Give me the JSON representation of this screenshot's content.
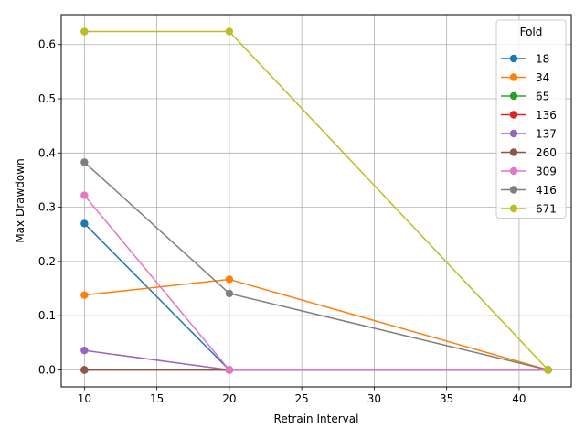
{
  "chart_data": {
    "type": "line",
    "title": "",
    "xlabel": "Retrain Interval",
    "ylabel": "Max Drawdown",
    "x": [
      10,
      20,
      42
    ],
    "xlim": [
      8.4,
      43.6
    ],
    "ylim": [
      -0.0312,
      0.6552
    ],
    "xticks": [
      10,
      15,
      20,
      25,
      30,
      35,
      40
    ],
    "yticks": [
      0.0,
      0.1,
      0.2,
      0.3,
      0.4,
      0.5,
      0.6
    ],
    "xtick_labels": [
      "10",
      "15",
      "20",
      "25",
      "30",
      "35",
      "40"
    ],
    "ytick_labels": [
      "0.0",
      "0.1",
      "0.2",
      "0.3",
      "0.4",
      "0.5",
      "0.6"
    ],
    "grid": true,
    "legend": {
      "title": "Fold",
      "placement": "top-right"
    },
    "series": [
      {
        "name": "18",
        "color": "#1f77b4",
        "values": [
          0.27,
          0.0,
          0.0
        ]
      },
      {
        "name": "34",
        "color": "#ff7f0e",
        "values": [
          0.138,
          0.167,
          0.0
        ]
      },
      {
        "name": "65",
        "color": "#2ca02c",
        "values": [
          0.0,
          0.0,
          0.0
        ]
      },
      {
        "name": "136",
        "color": "#d62728",
        "values": [
          0.0,
          0.0,
          0.0
        ]
      },
      {
        "name": "137",
        "color": "#9467bd",
        "values": [
          0.036,
          0.0,
          0.0
        ]
      },
      {
        "name": "260",
        "color": "#8c564b",
        "values": [
          0.0,
          0.0,
          0.0
        ]
      },
      {
        "name": "309",
        "color": "#e377c2",
        "values": [
          0.322,
          0.0,
          0.0
        ]
      },
      {
        "name": "416",
        "color": "#7f7f7f",
        "values": [
          0.383,
          0.141,
          0.0
        ]
      },
      {
        "name": "671",
        "color": "#bcbd22",
        "values": [
          0.624,
          0.624,
          0.0
        ]
      }
    ]
  }
}
